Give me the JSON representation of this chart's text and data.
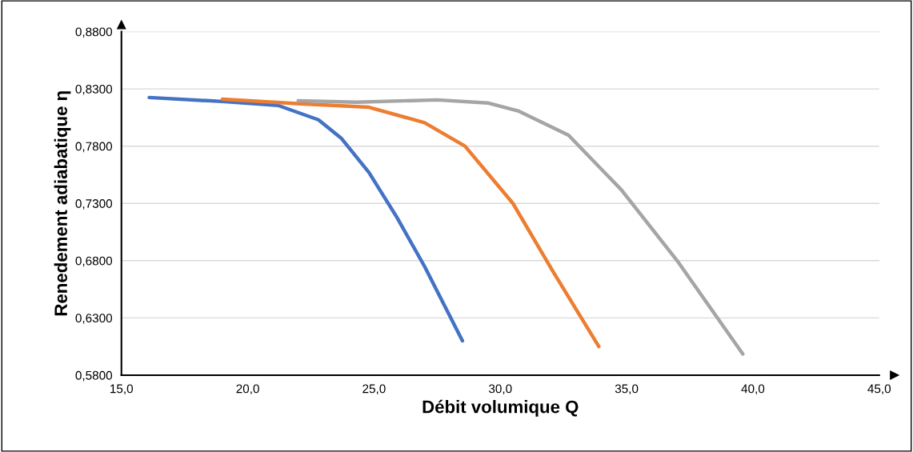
{
  "chart_data": {
    "type": "line",
    "xlabel": "Débit volumique Q",
    "ylabel": "Renedement adiabatique η",
    "xlim": [
      15,
      45
    ],
    "ylim": [
      0.58,
      0.88
    ],
    "xticks": [
      {
        "value": 15,
        "label": "15,0"
      },
      {
        "value": 20,
        "label": "20,0"
      },
      {
        "value": 25,
        "label": "25,0"
      },
      {
        "value": 30,
        "label": "30,0"
      },
      {
        "value": 35,
        "label": "35,0"
      },
      {
        "value": 40,
        "label": "40,0"
      },
      {
        "value": 45,
        "label": "45,0"
      }
    ],
    "yticks": [
      {
        "value": 0.58,
        "label": "0,5800"
      },
      {
        "value": 0.63,
        "label": "0,6300"
      },
      {
        "value": 0.68,
        "label": "0,6800"
      },
      {
        "value": 0.73,
        "label": "0,7300"
      },
      {
        "value": 0.78,
        "label": "0,7800"
      },
      {
        "value": 0.83,
        "label": "0,8300"
      },
      {
        "value": 0.88,
        "label": "0,8800"
      }
    ],
    "grid": "y",
    "marker": "none",
    "line_style": "solid",
    "series": [
      {
        "color": "#4472c4",
        "x": [
          16.1,
          19.0,
          21.2,
          22.8,
          23.7,
          24.8,
          25.9,
          27.0,
          28.5
        ],
        "values": [
          0.8225,
          0.819,
          0.8156,
          0.803,
          0.787,
          0.757,
          0.718,
          0.675,
          0.61
        ]
      },
      {
        "color": "#ed7d31",
        "x": [
          19.0,
          22.1,
          24.8,
          27.0,
          28.6,
          30.5,
          32.1,
          33.9
        ],
        "values": [
          0.821,
          0.817,
          0.814,
          0.8005,
          0.78,
          0.73,
          0.67,
          0.605
        ]
      },
      {
        "color": "#a5a5a5",
        "x": [
          22.0,
          24.3,
          27.5,
          29.5,
          30.7,
          32.7,
          34.8,
          37.0,
          39.6
        ],
        "values": [
          0.8197,
          0.8184,
          0.8204,
          0.8177,
          0.8108,
          0.7896,
          0.7416,
          0.68,
          0.5985
        ]
      }
    ]
  }
}
